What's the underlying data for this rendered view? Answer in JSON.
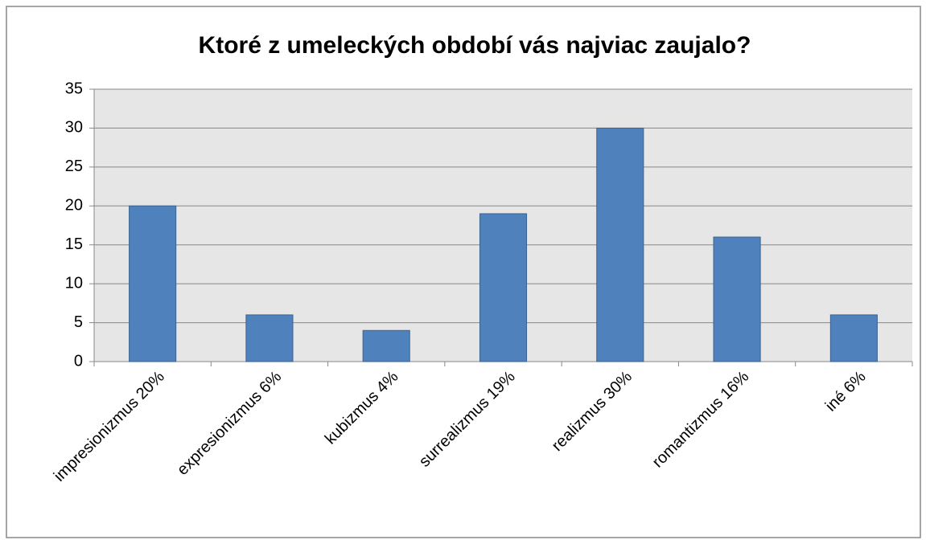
{
  "chart_data": {
    "type": "bar",
    "title": "Ktoré z umeleckých období vás najviac zaujalo?",
    "categories": [
      "impresionizmus 20%",
      "expresionizmus 6%",
      "kubizmus 4%",
      "surrealizmus 19%",
      "realizmus 30%",
      "romantizmus 16%",
      "iné 6%"
    ],
    "values": [
      20,
      6,
      4,
      19,
      30,
      16,
      6
    ],
    "color": "#4f81bd",
    "ylim": [
      0,
      35
    ],
    "yticks": [
      0,
      5,
      10,
      15,
      20,
      25,
      30,
      35
    ],
    "grid": true
  }
}
